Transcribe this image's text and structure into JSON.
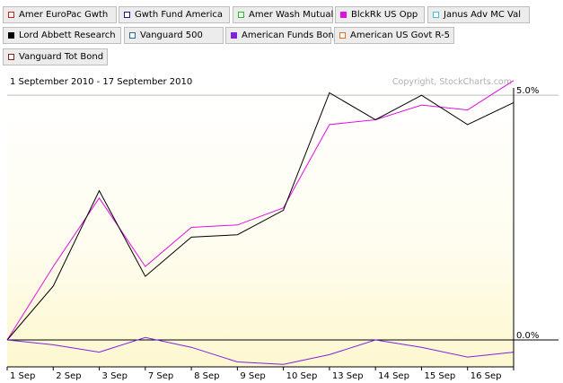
{
  "legend": [
    {
      "label": "Amer EuroPac Gwth",
      "color": "#d02020",
      "filled": false
    },
    {
      "label": "Gwth Fund America",
      "color": "#1a1a80",
      "filled": false
    },
    {
      "label": "Amer Wash Mutual",
      "color": "#20c020",
      "filled": false
    },
    {
      "label": "BlckRk US Opp",
      "color": "#e010e0",
      "filled": true
    },
    {
      "label": "Janus Adv MC Val",
      "color": "#40c0d8",
      "filled": false
    },
    {
      "label": "Lord Abbett Research",
      "color": "#000000",
      "filled": true
    },
    {
      "label": "Vanguard 500",
      "color": "#2a6a9a",
      "filled": false
    },
    {
      "label": "American Funds Bond",
      "color": "#8020e0",
      "filled": true
    },
    {
      "label": "American US Govt R-5",
      "color": "#e07020",
      "filled": false
    },
    {
      "label": "Vanguard Tot Bond",
      "color": "#802020",
      "filled": false
    }
  ],
  "chart_data": {
    "type": "line",
    "subtitle": "1 September 2010 - 17 September 2010",
    "copyright": "Copyright, StockCharts.com",
    "x": [
      "1 Sep",
      "2 Sep",
      "3 Sep",
      "7 Sep",
      "8 Sep",
      "9 Sep",
      "10 Sep",
      "13 Sep",
      "14 Sep",
      "15 Sep",
      "16 Sep",
      "17 Sep"
    ],
    "x_tick_labels": [
      "1 Sep",
      "2 Sep",
      "3 Sep",
      "7 Sep",
      "8 Sep",
      "9 Sep",
      "10 Sep",
      "13 Sep",
      "14 Sep",
      "15 Sep",
      "16 Sep"
    ],
    "y_tick_labels": [
      "5.0%",
      "0.0%"
    ],
    "y_ticks": [
      5.0,
      0.0
    ],
    "ylim": [
      -0.55,
      5.15
    ],
    "grid": false,
    "legend_position": "top",
    "series": [
      {
        "name": "BlckRk US Opp",
        "color": "#e010e0",
        "values": [
          0.0,
          1.5,
          2.9,
          1.5,
          2.3,
          2.35,
          2.7,
          4.4,
          4.5,
          4.8,
          4.7,
          5.3
        ]
      },
      {
        "name": "Lord Abbett Research",
        "color": "#000000",
        "values": [
          0.0,
          1.1,
          3.05,
          1.3,
          2.1,
          2.15,
          2.65,
          5.05,
          4.5,
          5.0,
          4.4,
          4.85
        ]
      },
      {
        "name": "American Funds Bond",
        "color": "#8020e0",
        "values": [
          0.0,
          -0.1,
          -0.25,
          0.05,
          -0.15,
          -0.45,
          -0.5,
          -0.3,
          0.0,
          -0.15,
          -0.35,
          -0.25
        ]
      }
    ]
  }
}
